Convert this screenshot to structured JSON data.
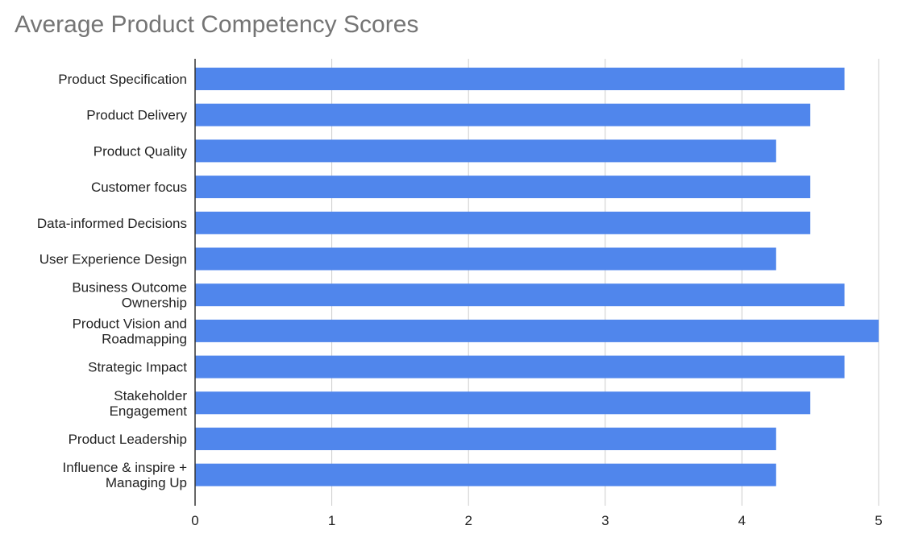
{
  "chart_data": {
    "type": "bar",
    "orientation": "horizontal",
    "title": "Average Product Competency Scores",
    "xlabel": "",
    "ylabel": "",
    "categories": [
      [
        "Product Specification"
      ],
      [
        "Product Delivery"
      ],
      [
        "Product Quality"
      ],
      [
        "Customer focus"
      ],
      [
        "Data-informed Decisions"
      ],
      [
        "User Experience Design"
      ],
      [
        "Business Outcome",
        "Ownership"
      ],
      [
        "Product Vision and",
        "Roadmapping"
      ],
      [
        "Strategic Impact"
      ],
      [
        "Stakeholder",
        "Engagement"
      ],
      [
        "Product Leadership"
      ],
      [
        "Influence & inspire +",
        "Managing Up"
      ]
    ],
    "values": [
      4.75,
      4.5,
      4.25,
      4.5,
      4.5,
      4.25,
      4.75,
      5.0,
      4.75,
      4.5,
      4.25,
      4.25
    ],
    "xlim": [
      0,
      5
    ],
    "xticks": [
      "0",
      "1",
      "2",
      "3",
      "4",
      "5"
    ],
    "grid": true,
    "bar_color": "#5086ec",
    "grid_color": "#cccccc",
    "axis_color": "#333333"
  }
}
